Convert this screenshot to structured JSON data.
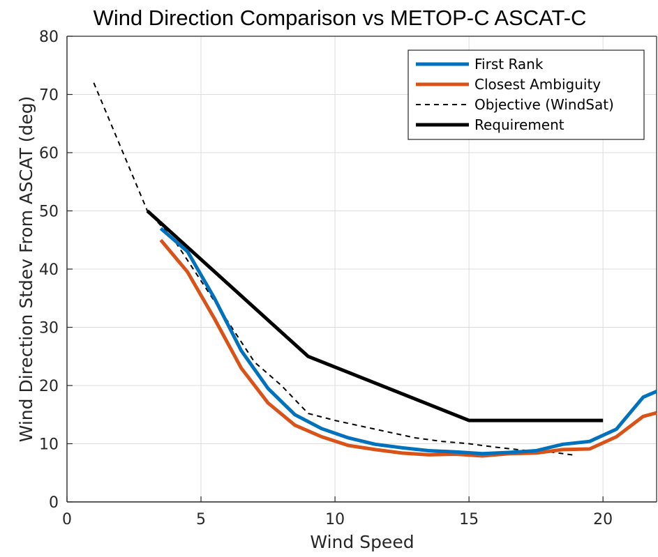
{
  "chart_data": {
    "type": "line",
    "title": "Wind Direction Comparison vs METOP-C ASCAT-C",
    "xlabel": "Wind Speed",
    "ylabel": "Wind Direction Stdev From ASCAT (deg)",
    "xlim": [
      0,
      22
    ],
    "ylim": [
      0,
      80
    ],
    "xticks": [
      0,
      5,
      10,
      15,
      20
    ],
    "yticks": [
      0,
      10,
      20,
      30,
      40,
      50,
      60,
      70,
      80
    ],
    "grid": true,
    "legend_position": "top-right",
    "series": [
      {
        "name": "First Rank",
        "color": "#0072BD",
        "style": "solid-thick",
        "x": [
          3.5,
          4.5,
          5.5,
          6.5,
          7.5,
          8.5,
          9.5,
          10.5,
          11.5,
          12.5,
          13.5,
          14.5,
          15.5,
          16.5,
          17.5,
          18.5,
          19.5,
          20.5,
          21.5,
          22
        ],
        "y": [
          47,
          43,
          35,
          26,
          19.5,
          15,
          12.6,
          11,
          9.9,
          9.3,
          8.8,
          8.6,
          8.3,
          8.5,
          8.8,
          9.9,
          10.4,
          12.5,
          18,
          19
        ]
      },
      {
        "name": "Closest Ambiguity",
        "color": "#D95319",
        "style": "solid-thick",
        "x": [
          3.5,
          4.5,
          5.5,
          6.5,
          7.5,
          8.5,
          9.5,
          10.5,
          11.5,
          12.5,
          13.5,
          14.5,
          15.5,
          16.5,
          17.5,
          18.5,
          19.5,
          20.5,
          21.5,
          22
        ],
        "y": [
          45,
          39.5,
          31.5,
          23,
          17,
          13.2,
          11.2,
          9.7,
          9.0,
          8.4,
          8.1,
          8.2,
          7.9,
          8.3,
          8.4,
          9.0,
          9.1,
          11.2,
          14.7,
          15.3
        ]
      },
      {
        "name": "Objective (WindSat)",
        "color": "#000000",
        "style": "dashed",
        "x": [
          1,
          3,
          4,
          5,
          6,
          7,
          8,
          9,
          10,
          11,
          12,
          13,
          14,
          15,
          16,
          17,
          18,
          19
        ],
        "y": [
          72,
          50,
          45,
          38,
          31,
          24,
          20,
          15.2,
          14,
          13,
          12,
          11,
          10.4,
          10,
          9.4,
          8.9,
          8.6,
          8
        ]
      },
      {
        "name": "Requirement",
        "color": "#000000",
        "style": "solid-thick",
        "x": [
          3,
          9,
          15,
          20
        ],
        "y": [
          50,
          25,
          14,
          14
        ]
      }
    ]
  }
}
